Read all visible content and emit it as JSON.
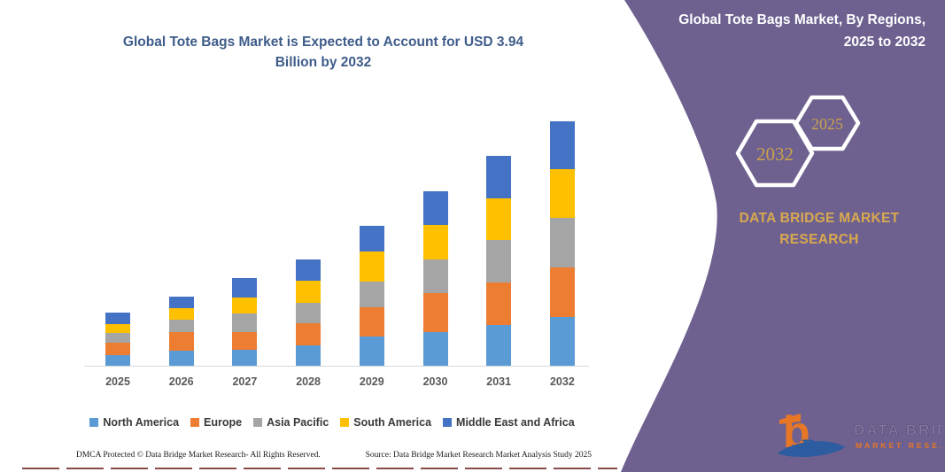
{
  "page": {
    "background": "#FFFFFF"
  },
  "chart": {
    "title_line1": "Global Tote Bags Market is Expected to Account for USD 3.94",
    "title_line2": "Billion by 2032",
    "title_color": "#3E5C8A",
    "axis_line_color": "#D9D9D9",
    "x_label_color": "#595959",
    "legend_text_color": "#3B3838"
  },
  "chart_data": {
    "type": "bar",
    "stacked": true,
    "title": "Global Tote Bags Market is Expected to Account for USD 3.94 Billion by 2032",
    "unit": "USD Billion",
    "xlabel": "",
    "ylabel": "",
    "grid": false,
    "legend_position": "bottom",
    "ylim": [
      0,
      4.1
    ],
    "categories": [
      "2025",
      "2026",
      "2027",
      "2028",
      "2029",
      "2030",
      "2031",
      "2032"
    ],
    "series": [
      {
        "name": "North America",
        "color": "#5B9BD5",
        "values": [
          0.17,
          0.25,
          0.26,
          0.33,
          0.47,
          0.55,
          0.66,
          0.79
        ]
      },
      {
        "name": "Europe",
        "color": "#ED7D31",
        "values": [
          0.2,
          0.29,
          0.29,
          0.36,
          0.48,
          0.62,
          0.68,
          0.8
        ]
      },
      {
        "name": "Asia Pacific",
        "color": "#A5A5A5",
        "values": [
          0.16,
          0.2,
          0.3,
          0.32,
          0.41,
          0.54,
          0.69,
          0.8
        ]
      },
      {
        "name": "South America",
        "color": "#FFC000",
        "values": [
          0.14,
          0.19,
          0.25,
          0.36,
          0.48,
          0.56,
          0.67,
          0.78
        ]
      },
      {
        "name": "Middle East and Africa",
        "color": "#4472C4",
        "values": [
          0.19,
          0.19,
          0.31,
          0.35,
          0.42,
          0.54,
          0.68,
          0.77
        ]
      }
    ],
    "totals": [
      0.86,
      1.12,
      1.41,
      1.72,
      2.26,
      2.81,
      3.38,
      3.94
    ]
  },
  "footer": {
    "left": "DMCA Protected © Data Bridge Market Research-  All Rights Reserved.",
    "right": "Source: Data Bridge Market Research  Market Analysis Study 2025"
  },
  "side_panel": {
    "panel_color": "#6E6190",
    "accent_gold": "#D9A94E",
    "title_line1": "Global Tote Bags Market, By Regions,",
    "title_line2": "2025 to 2032",
    "hexagon_left_year": "2032",
    "hexagon_right_year": "2025",
    "brand_line1": "DATA BRIDGE MARKET",
    "brand_line2": "RESEARCH",
    "logo": {
      "letter": "b",
      "swoosh_letter": "D",
      "text_top": "DATA BRIDGE",
      "text_bottom": "MARKET RESEARCH",
      "orange": "#E87725",
      "blue": "#2D5CA0"
    }
  }
}
